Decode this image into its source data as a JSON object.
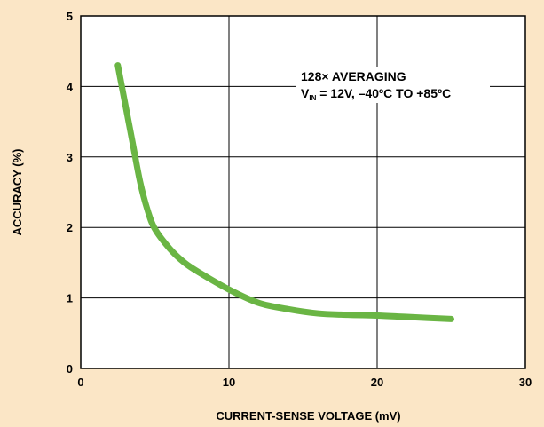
{
  "chart_data": {
    "type": "line",
    "xlabel": "CURRENT-SENSE VOLTAGE (mV)",
    "ylabel": "ACCURACY (%)",
    "xlim": [
      0,
      30
    ],
    "ylim": [
      0,
      5
    ],
    "xticks": [
      0,
      10,
      20,
      30
    ],
    "yticks": [
      0,
      1,
      2,
      3,
      4,
      5
    ],
    "grid": true,
    "annotation": {
      "line1": "128× AVERAGING",
      "line2_prefix": "V",
      "line2_subscript": "IN",
      "line2_suffix": " = 12V, –40ºC TO +85ºC"
    },
    "series": [
      {
        "color": "#6ab544",
        "x": [
          2.5,
          3.0,
          3.5,
          4.0,
          4.5,
          5.0,
          6.0,
          7.0,
          8.0,
          10.0,
          12.0,
          14.0,
          16.0,
          18.0,
          20.0,
          22.0,
          25.0
        ],
        "y": [
          4.3,
          3.75,
          3.2,
          2.65,
          2.25,
          1.98,
          1.7,
          1.5,
          1.36,
          1.12,
          0.93,
          0.84,
          0.78,
          0.76,
          0.75,
          0.73,
          0.7
        ]
      }
    ]
  }
}
